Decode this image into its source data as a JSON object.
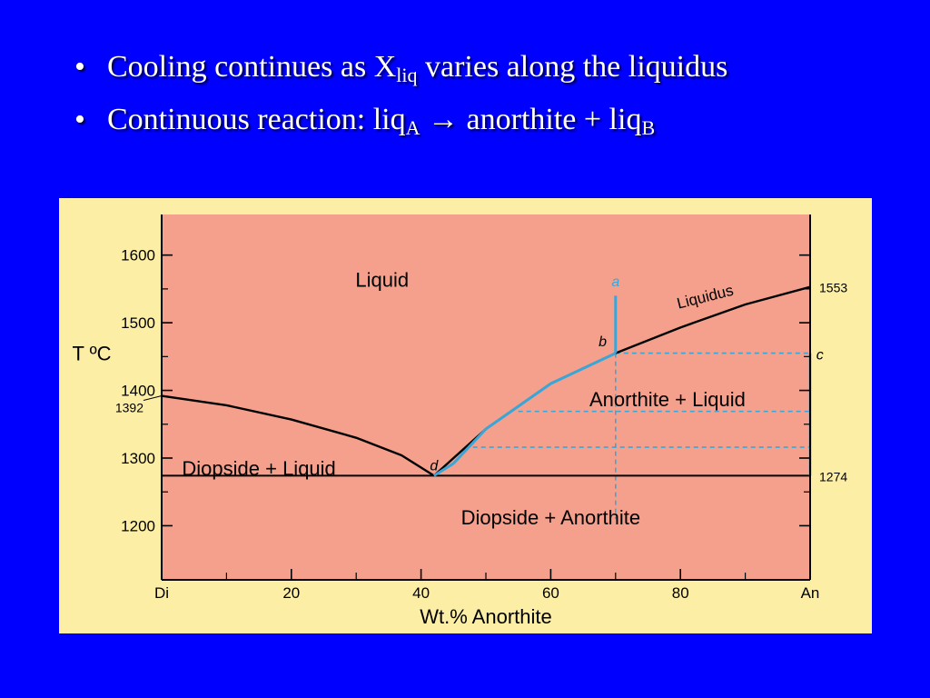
{
  "slide": {
    "bullets": [
      {
        "text": "Cooling continues as X",
        "sub": "liq",
        "tail": " varies along the liquidus"
      },
      {
        "text": "Continuous reaction: liq",
        "sub": "A",
        "mid": " → anorthite + liq",
        "sub2": "B"
      }
    ],
    "bullet_glyph": "•"
  },
  "colors": {
    "background": "#0000ff",
    "figure_background": "#fcefa5",
    "plot_fill": "#f5a08c",
    "curve": "#000000",
    "path": "#3aa6d8"
  },
  "chart_data": {
    "type": "line",
    "xlabel": "Wt.% Anorthite",
    "ylabel": "T ºC",
    "xlim": [
      0,
      100
    ],
    "ylim": [
      1120,
      1660
    ],
    "x_ticks": [
      {
        "value": 0,
        "label": "Di"
      },
      {
        "value": 20,
        "label": "20"
      },
      {
        "value": 40,
        "label": "40"
      },
      {
        "value": 60,
        "label": "60"
      },
      {
        "value": 80,
        "label": "80"
      },
      {
        "value": 100,
        "label": "An"
      }
    ],
    "x_minor_ticks": [
      10,
      30,
      50,
      70,
      90
    ],
    "y_ticks": [
      1200,
      1300,
      1400,
      1500,
      1600
    ],
    "y_minor_ticks": [
      1250,
      1350,
      1450,
      1550
    ],
    "special_labels": [
      {
        "side": "left",
        "value": 1392,
        "label": "1392"
      },
      {
        "side": "right",
        "value": 1553,
        "label": "1553"
      },
      {
        "side": "right",
        "value": 1274,
        "label": "1274"
      }
    ],
    "eutectic_temperature": 1274,
    "curves": [
      {
        "name": "diopside liquidus",
        "points": [
          [
            0,
            1392
          ],
          [
            10,
            1378
          ],
          [
            20,
            1357
          ],
          [
            30,
            1330
          ],
          [
            37,
            1304
          ],
          [
            42,
            1274
          ]
        ]
      },
      {
        "name": "anorthite liquidus",
        "points": [
          [
            42,
            1274
          ],
          [
            50,
            1343
          ],
          [
            60,
            1410
          ],
          [
            70,
            1455
          ],
          [
            80,
            1493
          ],
          [
            90,
            1527
          ],
          [
            100,
            1553
          ]
        ]
      }
    ],
    "cooling_path": [
      {
        "from": [
          70,
          1540
        ],
        "to": [
          70,
          1455
        ]
      },
      {
        "from": [
          70,
          1455
        ],
        "along_liquidus_to": [
          45,
          1292
        ]
      }
    ],
    "tie_lines": [
      {
        "x1": 70,
        "x2": 100,
        "y": 1455
      },
      {
        "x1": 55,
        "x2": 100,
        "y": 1369
      },
      {
        "x1": 48,
        "x2": 100,
        "y": 1316
      }
    ],
    "isopleth": {
      "x": 70,
      "y1": 1455,
      "y2": 1210
    },
    "right_path": {
      "x": 100,
      "y1": 1455,
      "y2": 1274
    },
    "region_labels": [
      {
        "label": "Liquid",
        "x": 34,
        "y": 1564
      },
      {
        "label": "Anorthite + Liquid",
        "x": 78,
        "y": 1387
      },
      {
        "label": "Diopside + Liquid",
        "x": 15,
        "y": 1285
      },
      {
        "label": "Diopside + Anorthite",
        "x": 60,
        "y": 1213
      }
    ],
    "point_labels": [
      {
        "label": "a",
        "x": 70,
        "y": 1562
      },
      {
        "label": "b",
        "x": 68,
        "y": 1473
      },
      {
        "label": "c",
        "x": 101.5,
        "y": 1454
      },
      {
        "label": "d",
        "x": 42,
        "y": 1290
      }
    ],
    "curve_label": {
      "label": "Liquidus",
      "x": 84,
      "y": 1531,
      "angle": -14
    }
  }
}
